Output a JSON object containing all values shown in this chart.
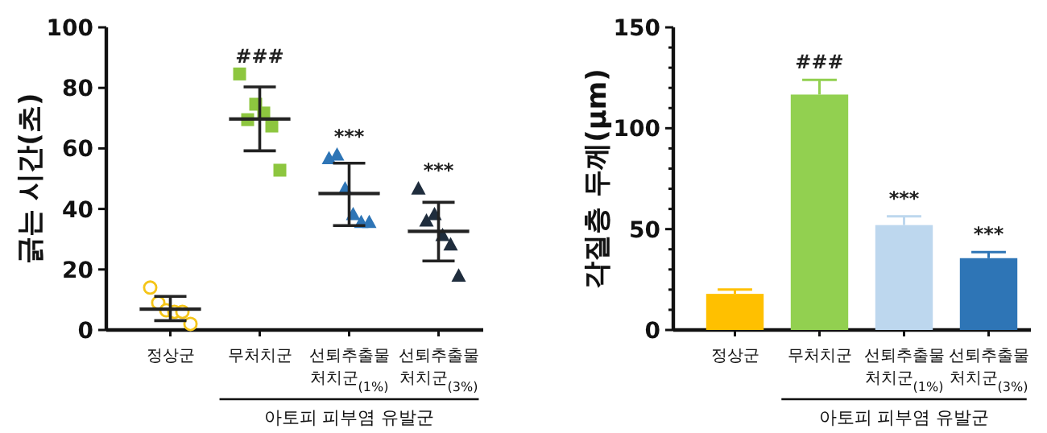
{
  "chart_data": [
    {
      "type": "scatter",
      "categories": [
        "정상군",
        "무처치군",
        "선퇴추출물 처치군$_{(1%)}$",
        "선퇴추출물 처치군$_{(3%)}$"
      ],
      "ylabel": "긁는 시간(초)",
      "ylim": [
        0,
        100
      ],
      "yticks": [
        0,
        20,
        40,
        60,
        80,
        100
      ],
      "series": [
        {
          "color": "#f5c518",
          "marker": "circle",
          "x": [
            "정상군",
            "정상군",
            "정상군",
            "정상군",
            "정상군",
            "정상군"
          ],
          "values": [
            14,
            9,
            6.5,
            6,
            6,
            2
          ]
        },
        {
          "color": "#8dc63f",
          "marker": "square",
          "x": [
            "무처치군",
            "무처치군",
            "무처치군",
            "무처치군",
            "무처치군",
            "무처치군"
          ],
          "values": [
            84.6,
            69.5,
            74.6,
            71.7,
            67.4,
            52.8
          ]
        },
        {
          "color": "#2e75b6",
          "marker": "triangle",
          "x": [
            "선퇴추출물 처치군$_{(1%)}$",
            "선퇴추출물 처치군$_{(1%)}$",
            "선퇴추출물 처치군$_{(1%)}$",
            "선퇴추출물 처치군$_{(1%)}$",
            "선퇴추출물 처치군$_{(1%)}$",
            "선퇴추출물 처치군$_{(1%)}$"
          ],
          "values": [
            56.8,
            58,
            46.8,
            38.3,
            35.7,
            35.7
          ]
        },
        {
          "color": "#1f2d3d",
          "marker": "triangle",
          "x": [
            "선퇴추출물 처치군$_{(3%)}$",
            "선퇴추출물 처치군$_{(3%)}$",
            "선퇴추출물 처치군$_{(3%)}$",
            "선퇴추출물 처치군$_{(3%)}$",
            "선퇴추출물 처치군$_{(3%)}$",
            "선퇴추출물 처치군$_{(3%)}$"
          ],
          "values": [
            46.8,
            36.2,
            38.3,
            31.4,
            28.3,
            18
          ]
        },
        {
          "type": "box",
          "color": "#222222",
          "boxes": [
            {
              "low": 3.1,
              "q1": 6.9,
              "median": 6.9,
              "q3": 6.9,
              "high": 11.1
            },
            {
              "low": 59.2,
              "q1": 69.7,
              "median": 69.7,
              "q3": 69.7,
              "high": 80.3
            },
            {
              "low": 34.5,
              "q1": 45.1,
              "median": 45.1,
              "q3": 45.1,
              "high": 55.1
            },
            {
              "low": 22.8,
              "q1": 32.6,
              "median": 32.6,
              "q3": 32.6,
              "high": 42.2
            }
          ]
        }
      ],
      "annotations": [
        "###",
        "***",
        "***",
        "아토피 피부염 유발군"
      ]
    },
    {
      "type": "bar",
      "categories": [
        "정상군",
        "무처치군",
        "선퇴추출물 처치군$_{(1%)}$",
        "선퇴추출물 처치군$_{(3%)}$"
      ],
      "ylabel": "각질층 두께(μm)",
      "values": [
        17.9,
        116.7,
        52,
        35.6
      ],
      "colors": [
        "#ffc000",
        "#92d050",
        "#bdd7ee",
        "#2e75b6"
      ],
      "errors": [
        [
          17.9,
          20
        ],
        [
          116.7,
          124
        ],
        [
          52,
          56.3
        ],
        [
          35.6,
          38.6
        ]
      ],
      "ylim": [
        0,
        150
      ],
      "yticks": [
        0,
        {
          "value": 10,
          "label": null
        },
        {
          "value": 20,
          "label": null
        },
        {
          "value": 30,
          "label": null
        },
        {
          "value": 40,
          "label": null
        },
        50,
        {
          "value": 60,
          "label": null
        },
        {
          "value": 70,
          "label": null
        },
        {
          "value": 80,
          "label": null
        },
        {
          "value": 90,
          "label": null
        },
        100,
        {
          "value": 110,
          "label": null
        },
        {
          "value": 120,
          "label": null
        },
        {
          "value": 130,
          "label": null
        },
        {
          "value": 140,
          "label": null
        },
        150
      ],
      "annotations": [
        "###",
        "***",
        "***",
        "아토피 피부염 유발군"
      ]
    }
  ]
}
